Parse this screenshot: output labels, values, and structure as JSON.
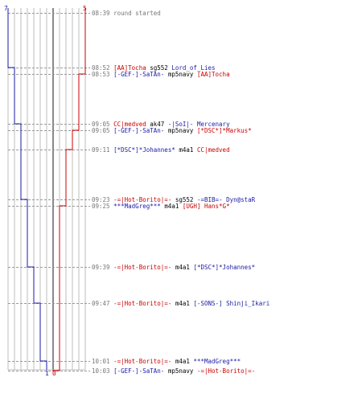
{
  "scoreboard": {
    "blue_start": "7",
    "red_start": "5",
    "blue_end": "1",
    "red_end": "0",
    "colors": {
      "blue": "#1a1aa8",
      "red": "#cc0000",
      "grid": "#bdbdbd",
      "guide": "#9a9a9a"
    }
  },
  "events": [
    {
      "time": "08:39",
      "note": "round started"
    },
    {
      "time": "08:52",
      "killer": "[AA]Tocha",
      "killer_team": "red",
      "weapon": "sg552",
      "victim": "Lord_of_Lies",
      "victim_team": "blue"
    },
    {
      "time": "08:53",
      "killer": "[-GEF-]-SaTAn-",
      "killer_team": "blue",
      "weapon": "mp5navy",
      "victim": "[AA]Tocha",
      "victim_team": "red"
    },
    {
      "time": "09:05",
      "killer": "CC|medved",
      "killer_team": "red",
      "weapon": "ak47",
      "victim": "-|SoI|- Mercenary",
      "victim_team": "blue"
    },
    {
      "time": "09:05",
      "killer": "[-GEF-]-SaTAn-",
      "killer_team": "blue",
      "weapon": "mp5navy",
      "victim": "[*DSC*]*Markus*",
      "victim_team": "red"
    },
    {
      "time": "09:11",
      "killer": "[*DSC*]*Johannes*",
      "killer_team": "blue",
      "weapon": "m4a1",
      "victim": "CC|medved",
      "victim_team": "red"
    },
    {
      "time": "09:23",
      "killer": "-=|Hot-Borito|=-",
      "killer_team": "red",
      "weapon": "sg552",
      "victim": "-=BIB=- Dyn@staR",
      "victim_team": "blue"
    },
    {
      "time": "09:25",
      "killer": "***MadGreg***",
      "killer_team": "blue",
      "weapon": "m4a1",
      "victim": "[UGH] Hans*G*",
      "victim_team": "red"
    },
    {
      "time": "09:39",
      "killer": "-=|Hot-Borito|=-",
      "killer_team": "red",
      "weapon": "m4a1",
      "victim": "[*DSC*]*Johannes*",
      "victim_team": "blue"
    },
    {
      "time": "09:47",
      "killer": "-=|Hot-Borito|=-",
      "killer_team": "red",
      "weapon": "m4a1",
      "victim": "[-SONS-] Shinji_Ikari",
      "victim_team": "blue"
    },
    {
      "time": "10:01",
      "killer": "-=|Hot-Borito|=-",
      "killer_team": "red",
      "weapon": "m4a1",
      "victim": "***MadGreg***",
      "victim_team": "blue"
    },
    {
      "time": "10:03",
      "killer": "[-GEF-]-SaTAn-",
      "killer_team": "blue",
      "weapon": "mp5navy",
      "victim": "-=|Hot-Borito|=-",
      "victim_team": "red"
    }
  ]
}
